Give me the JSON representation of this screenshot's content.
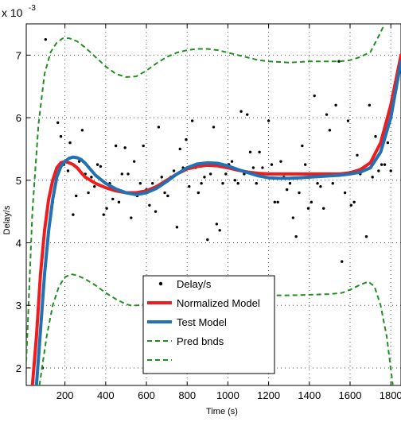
{
  "chart_data": {
    "type": "line",
    "title": "",
    "xlabel": "Time (s)",
    "ylabel": "Delay/s",
    "y_multiplier_label": "x 10",
    "y_multiplier_exponent": "-3",
    "xlim": [
      10,
      1850
    ],
    "ylim": [
      1.72,
      7.5
    ],
    "xticks": [
      200,
      400,
      600,
      800,
      1000,
      1200,
      1400,
      1600,
      1800
    ],
    "xtick_labels": [
      "200",
      "400",
      "600",
      "800",
      "1000",
      "1200",
      "1400",
      "1600",
      "1800"
    ],
    "yticks": [
      2,
      3,
      4,
      5,
      6,
      7
    ],
    "ytick_labels": [
      "2",
      "3",
      "4",
      "5",
      "6",
      "7"
    ],
    "grid": true,
    "legend_position": "bottom-center",
    "series": [
      {
        "name": "Delay/s",
        "kind": "scatter",
        "color": "#000000",
        "points": [
          [
            90,
            2.0
          ],
          [
            105,
            7.25
          ],
          [
            140,
            4.65
          ],
          [
            165,
            5.92
          ],
          [
            180,
            5.7
          ],
          [
            195,
            5.25
          ],
          [
            215,
            5.15
          ],
          [
            225,
            5.6
          ],
          [
            240,
            4.45
          ],
          [
            255,
            4.75
          ],
          [
            270,
            5.3
          ],
          [
            285,
            5.8
          ],
          [
            300,
            5.1
          ],
          [
            315,
            4.8
          ],
          [
            330,
            5.05
          ],
          [
            345,
            4.9
          ],
          [
            360,
            5.25
          ],
          [
            375,
            5.22
          ],
          [
            390,
            4.45
          ],
          [
            405,
            4.55
          ],
          [
            420,
            4.95
          ],
          [
            435,
            4.7
          ],
          [
            450,
            5.55
          ],
          [
            465,
            4.65
          ],
          [
            480,
            5.1
          ],
          [
            495,
            5.52
          ],
          [
            510,
            5.1
          ],
          [
            525,
            4.4
          ],
          [
            540,
            5.3
          ],
          [
            555,
            4.75
          ],
          [
            570,
            4.95
          ],
          [
            585,
            5.55
          ],
          [
            600,
            4.85
          ],
          [
            615,
            4.6
          ],
          [
            630,
            4.95
          ],
          [
            645,
            4.5
          ],
          [
            660,
            5.85
          ],
          [
            675,
            5.05
          ],
          [
            690,
            4.8
          ],
          [
            705,
            4.75
          ],
          [
            720,
            5.05
          ],
          [
            735,
            5.15
          ],
          [
            750,
            4.25
          ],
          [
            765,
            5.5
          ],
          [
            780,
            5.2
          ],
          [
            795,
            5.65
          ],
          [
            810,
            4.9
          ],
          [
            825,
            5.95
          ],
          [
            840,
            5.2
          ],
          [
            855,
            4.8
          ],
          [
            870,
            4.95
          ],
          [
            885,
            5.05
          ],
          [
            900,
            4.05
          ],
          [
            915,
            5.1
          ],
          [
            930,
            5.85
          ],
          [
            945,
            4.3
          ],
          [
            960,
            4.2
          ],
          [
            975,
            4.95
          ],
          [
            990,
            5.1
          ],
          [
            1005,
            5.25
          ],
          [
            1020,
            5.3
          ],
          [
            1035,
            5.0
          ],
          [
            1050,
            4.95
          ],
          [
            1065,
            6.1
          ],
          [
            1080,
            5.1
          ],
          [
            1095,
            6.05
          ],
          [
            1110,
            5.45
          ],
          [
            1125,
            5.2
          ],
          [
            1140,
            4.95
          ],
          [
            1155,
            5.45
          ],
          [
            1170,
            5.2
          ],
          [
            1185,
            5.05
          ],
          [
            1200,
            5.95
          ],
          [
            1215,
            5.25
          ],
          [
            1230,
            4.65
          ],
          [
            1245,
            4.65
          ],
          [
            1260,
            5.3
          ],
          [
            1275,
            5.05
          ],
          [
            1290,
            4.85
          ],
          [
            1305,
            4.95
          ],
          [
            1320,
            4.4
          ],
          [
            1335,
            4.1
          ],
          [
            1350,
            4.8
          ],
          [
            1365,
            5.55
          ],
          [
            1380,
            5.25
          ],
          [
            1395,
            4.55
          ],
          [
            1410,
            4.65
          ],
          [
            1425,
            6.35
          ],
          [
            1440,
            4.95
          ],
          [
            1455,
            4.9
          ],
          [
            1470,
            4.55
          ],
          [
            1485,
            6.05
          ],
          [
            1500,
            5.8
          ],
          [
            1515,
            4.95
          ],
          [
            1530,
            6.2
          ],
          [
            1545,
            6.9
          ],
          [
            1560,
            3.7
          ],
          [
            1575,
            4.8
          ],
          [
            1590,
            5.95
          ],
          [
            1605,
            4.6
          ],
          [
            1620,
            4.65
          ],
          [
            1635,
            5.4
          ],
          [
            1650,
            5.1
          ],
          [
            1665,
            5.2
          ],
          [
            1680,
            4.1
          ],
          [
            1695,
            6.2
          ],
          [
            1710,
            5.05
          ],
          [
            1725,
            5.7
          ],
          [
            1740,
            5.15
          ],
          [
            1755,
            5.25
          ],
          [
            1770,
            5.25
          ],
          [
            1785,
            5.6
          ],
          [
            1800,
            5.15
          ]
        ]
      },
      {
        "name": "Normalized Model",
        "kind": "line",
        "color": "#ee1c1c",
        "points": [
          [
            40,
            1.72
          ],
          [
            60,
            2.5
          ],
          [
            80,
            3.5
          ],
          [
            100,
            4.2
          ],
          [
            120,
            4.7
          ],
          [
            140,
            5.0
          ],
          [
            160,
            5.2
          ],
          [
            180,
            5.28
          ],
          [
            200,
            5.3
          ],
          [
            220,
            5.28
          ],
          [
            240,
            5.25
          ],
          [
            260,
            5.2
          ],
          [
            280,
            5.12
          ],
          [
            300,
            5.05
          ],
          [
            350,
            4.95
          ],
          [
            400,
            4.88
          ],
          [
            450,
            4.83
          ],
          [
            500,
            4.8
          ],
          [
            550,
            4.8
          ],
          [
            600,
            4.83
          ],
          [
            650,
            4.9
          ],
          [
            700,
            5.0
          ],
          [
            750,
            5.1
          ],
          [
            800,
            5.18
          ],
          [
            850,
            5.22
          ],
          [
            900,
            5.24
          ],
          [
            950,
            5.23
          ],
          [
            1000,
            5.2
          ],
          [
            1050,
            5.16
          ],
          [
            1100,
            5.13
          ],
          [
            1150,
            5.11
          ],
          [
            1200,
            5.1
          ],
          [
            1250,
            5.1
          ],
          [
            1300,
            5.1
          ],
          [
            1350,
            5.1
          ],
          [
            1400,
            5.1
          ],
          [
            1450,
            5.1
          ],
          [
            1500,
            5.1
          ],
          [
            1550,
            5.1
          ],
          [
            1600,
            5.12
          ],
          [
            1650,
            5.17
          ],
          [
            1700,
            5.28
          ],
          [
            1750,
            5.6
          ],
          [
            1800,
            6.2
          ],
          [
            1850,
            7.0
          ]
        ]
      },
      {
        "name": "Test Model",
        "kind": "line",
        "color": "#2171b5",
        "points": [
          [
            60,
            1.72
          ],
          [
            80,
            2.6
          ],
          [
            100,
            3.5
          ],
          [
            120,
            4.2
          ],
          [
            140,
            4.7
          ],
          [
            160,
            5.05
          ],
          [
            180,
            5.22
          ],
          [
            200,
            5.3
          ],
          [
            220,
            5.35
          ],
          [
            240,
            5.37
          ],
          [
            260,
            5.36
          ],
          [
            280,
            5.33
          ],
          [
            300,
            5.27
          ],
          [
            350,
            5.08
          ],
          [
            400,
            4.95
          ],
          [
            450,
            4.86
          ],
          [
            500,
            4.8
          ],
          [
            550,
            4.77
          ],
          [
            600,
            4.8
          ],
          [
            650,
            4.87
          ],
          [
            700,
            4.98
          ],
          [
            750,
            5.1
          ],
          [
            800,
            5.2
          ],
          [
            850,
            5.26
          ],
          [
            900,
            5.28
          ],
          [
            950,
            5.27
          ],
          [
            1000,
            5.23
          ],
          [
            1050,
            5.17
          ],
          [
            1100,
            5.12
          ],
          [
            1150,
            5.07
          ],
          [
            1200,
            5.04
          ],
          [
            1250,
            5.03
          ],
          [
            1300,
            5.03
          ],
          [
            1350,
            5.04
          ],
          [
            1400,
            5.05
          ],
          [
            1450,
            5.06
          ],
          [
            1500,
            5.07
          ],
          [
            1550,
            5.08
          ],
          [
            1600,
            5.1
          ],
          [
            1650,
            5.13
          ],
          [
            1700,
            5.2
          ],
          [
            1750,
            5.45
          ],
          [
            1800,
            6.0
          ],
          [
            1850,
            6.9
          ]
        ]
      },
      {
        "name": "Pred bnds",
        "kind": "line",
        "style": "dashed",
        "color": "#1f8f1f",
        "points": [
          [
            10,
            2.1
          ],
          [
            40,
            4.5
          ],
          [
            70,
            5.9
          ],
          [
            100,
            6.7
          ],
          [
            130,
            7.05
          ],
          [
            160,
            7.2
          ],
          [
            190,
            7.27
          ],
          [
            220,
            7.27
          ],
          [
            260,
            7.22
          ],
          [
            300,
            7.12
          ],
          [
            350,
            6.97
          ],
          [
            400,
            6.82
          ],
          [
            450,
            6.7
          ],
          [
            500,
            6.65
          ],
          [
            550,
            6.66
          ],
          [
            600,
            6.75
          ],
          [
            650,
            6.87
          ],
          [
            700,
            6.97
          ],
          [
            750,
            7.04
          ],
          [
            800,
            7.08
          ],
          [
            850,
            7.1
          ],
          [
            900,
            7.1
          ],
          [
            950,
            7.08
          ],
          [
            1000,
            7.04
          ],
          [
            1050,
            7.0
          ],
          [
            1100,
            6.96
          ],
          [
            1150,
            6.92
          ],
          [
            1200,
            6.9
          ],
          [
            1300,
            6.88
          ],
          [
            1400,
            6.9
          ],
          [
            1500,
            6.9
          ],
          [
            1550,
            6.9
          ],
          [
            1600,
            6.92
          ],
          [
            1650,
            6.97
          ],
          [
            1700,
            7.05
          ],
          [
            1740,
            7.3
          ],
          [
            1770,
            7.5
          ]
        ]
      },
      {
        "name": "",
        "kind": "line",
        "style": "dashed",
        "color": "#1f8f1f",
        "points": [
          [
            75,
            1.72
          ],
          [
            110,
            2.5
          ],
          [
            140,
            3.0
          ],
          [
            170,
            3.3
          ],
          [
            200,
            3.45
          ],
          [
            230,
            3.5
          ],
          [
            260,
            3.48
          ],
          [
            300,
            3.42
          ],
          [
            350,
            3.32
          ],
          [
            400,
            3.2
          ],
          [
            450,
            3.1
          ],
          [
            500,
            3.02
          ],
          [
            520,
            3.0
          ],
          [
            560,
            3.0
          ],
          [
            800,
            3.17
          ],
          [
            900,
            3.18
          ],
          [
            1000,
            3.17
          ],
          [
            1100,
            3.16
          ],
          [
            1200,
            3.16
          ],
          [
            1300,
            3.16
          ],
          [
            1400,
            3.17
          ],
          [
            1500,
            3.18
          ],
          [
            1560,
            3.2
          ],
          [
            1600,
            3.25
          ],
          [
            1650,
            3.33
          ],
          [
            1690,
            3.38
          ],
          [
            1720,
            3.3
          ],
          [
            1750,
            3.0
          ],
          [
            1780,
            2.5
          ],
          [
            1810,
            1.72
          ]
        ]
      }
    ]
  },
  "legend": {
    "items": [
      {
        "label": "Delay/s",
        "marker": "dot",
        "color": "#000000"
      },
      {
        "label": "Normalized Model",
        "marker": "line",
        "color": "#ee1c1c"
      },
      {
        "label": "Test Model",
        "marker": "line",
        "color": "#2171b5"
      },
      {
        "label": "Pred bnds",
        "marker": "dash",
        "color": "#1f8f1f"
      },
      {
        "label": "",
        "marker": "dash",
        "color": "#1f8f1f"
      }
    ]
  }
}
